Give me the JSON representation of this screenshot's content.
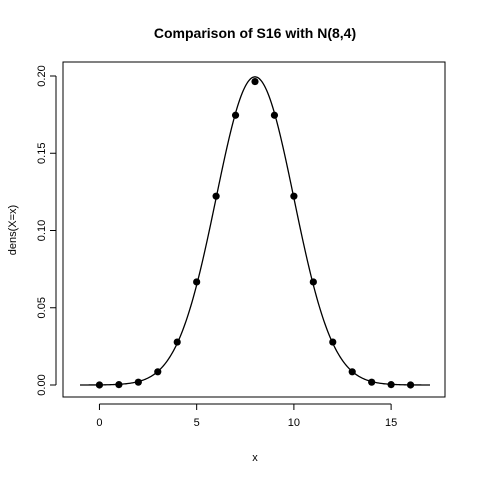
{
  "chart_data": {
    "type": "scatter",
    "title": "Comparison of S16 with N(8,4)",
    "xlabel": "x",
    "ylabel": "dens(X=x)",
    "xlim": [
      -1,
      17
    ],
    "ylim": [
      0,
      0.2
    ],
    "x_ticks": [
      0,
      5,
      10,
      15
    ],
    "y_ticks": [
      0.0,
      0.05,
      0.1,
      0.15,
      0.2
    ],
    "x_tick_labels": [
      "0",
      "5",
      "10",
      "15"
    ],
    "y_tick_labels": [
      "0.00",
      "0.05",
      "0.10",
      "0.15",
      "0.20"
    ],
    "series": [
      {
        "kind": "points",
        "x": [
          0,
          1,
          2,
          3,
          4,
          5,
          6,
          7,
          8,
          9,
          10,
          11,
          12,
          13,
          14,
          15,
          16
        ],
        "y": [
          1.53e-05,
          0.000244,
          0.00183,
          0.00854,
          0.0278,
          0.0667,
          0.1222,
          0.1746,
          0.1964,
          0.1746,
          0.1222,
          0.0667,
          0.0278,
          0.00854,
          0.00183,
          0.000244,
          1.53e-05
        ]
      },
      {
        "kind": "curve",
        "distribution": "normal",
        "mean": 8,
        "variance": 4,
        "x_range": [
          -1,
          17
        ]
      }
    ],
    "grid": false,
    "legend": "none",
    "colors": {
      "points": "#000000",
      "curve": "#000000",
      "axes": "#000000"
    }
  }
}
